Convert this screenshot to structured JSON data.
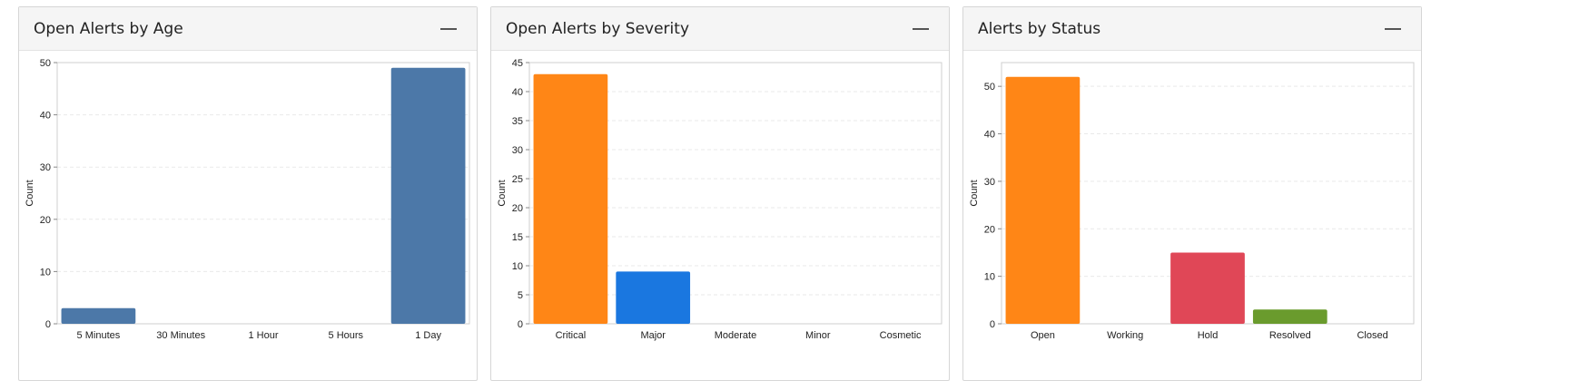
{
  "collapse_icon": "minus-icon",
  "panels": [
    {
      "title": "Open Alerts by Age",
      "chart_data": {
        "type": "bar",
        "ylabel": "Count",
        "ylim": [
          0,
          50
        ],
        "yticks": [
          0,
          10,
          20,
          30,
          40,
          50
        ],
        "categories": [
          "5 Minutes",
          "30 Minutes",
          "1 Hour",
          "5 Hours",
          "1 Day"
        ],
        "values": [
          3,
          0,
          0,
          0,
          49
        ],
        "colors": [
          "#4c78a8",
          "#4c78a8",
          "#4c78a8",
          "#4c78a8",
          "#4c78a8"
        ],
        "grid": true
      }
    },
    {
      "title": "Open Alerts by Severity",
      "chart_data": {
        "type": "bar",
        "ylabel": "Count",
        "ylim": [
          0,
          45
        ],
        "yticks": [
          0,
          5,
          10,
          15,
          20,
          25,
          30,
          35,
          40,
          45
        ],
        "categories": [
          "Critical",
          "Major",
          "Moderate",
          "Minor",
          "Cosmetic"
        ],
        "values": [
          43,
          9,
          0,
          0,
          0
        ],
        "colors": [
          "#ff8616",
          "#1a77e0",
          "#1a77e0",
          "#1a77e0",
          "#1a77e0"
        ],
        "grid": true
      }
    },
    {
      "title": "Alerts by Status",
      "chart_data": {
        "type": "bar",
        "ylabel": "Count",
        "ylim": [
          0,
          55
        ],
        "yticks": [
          0,
          10,
          20,
          30,
          40,
          50
        ],
        "categories": [
          "Open",
          "Working",
          "Hold",
          "Resolved",
          "Closed"
        ],
        "values": [
          52,
          0,
          15,
          3,
          0
        ],
        "colors": [
          "#ff8616",
          "#ff8616",
          "#e04757",
          "#6a9b2d",
          "#6a9b2d"
        ],
        "grid": true
      }
    }
  ]
}
